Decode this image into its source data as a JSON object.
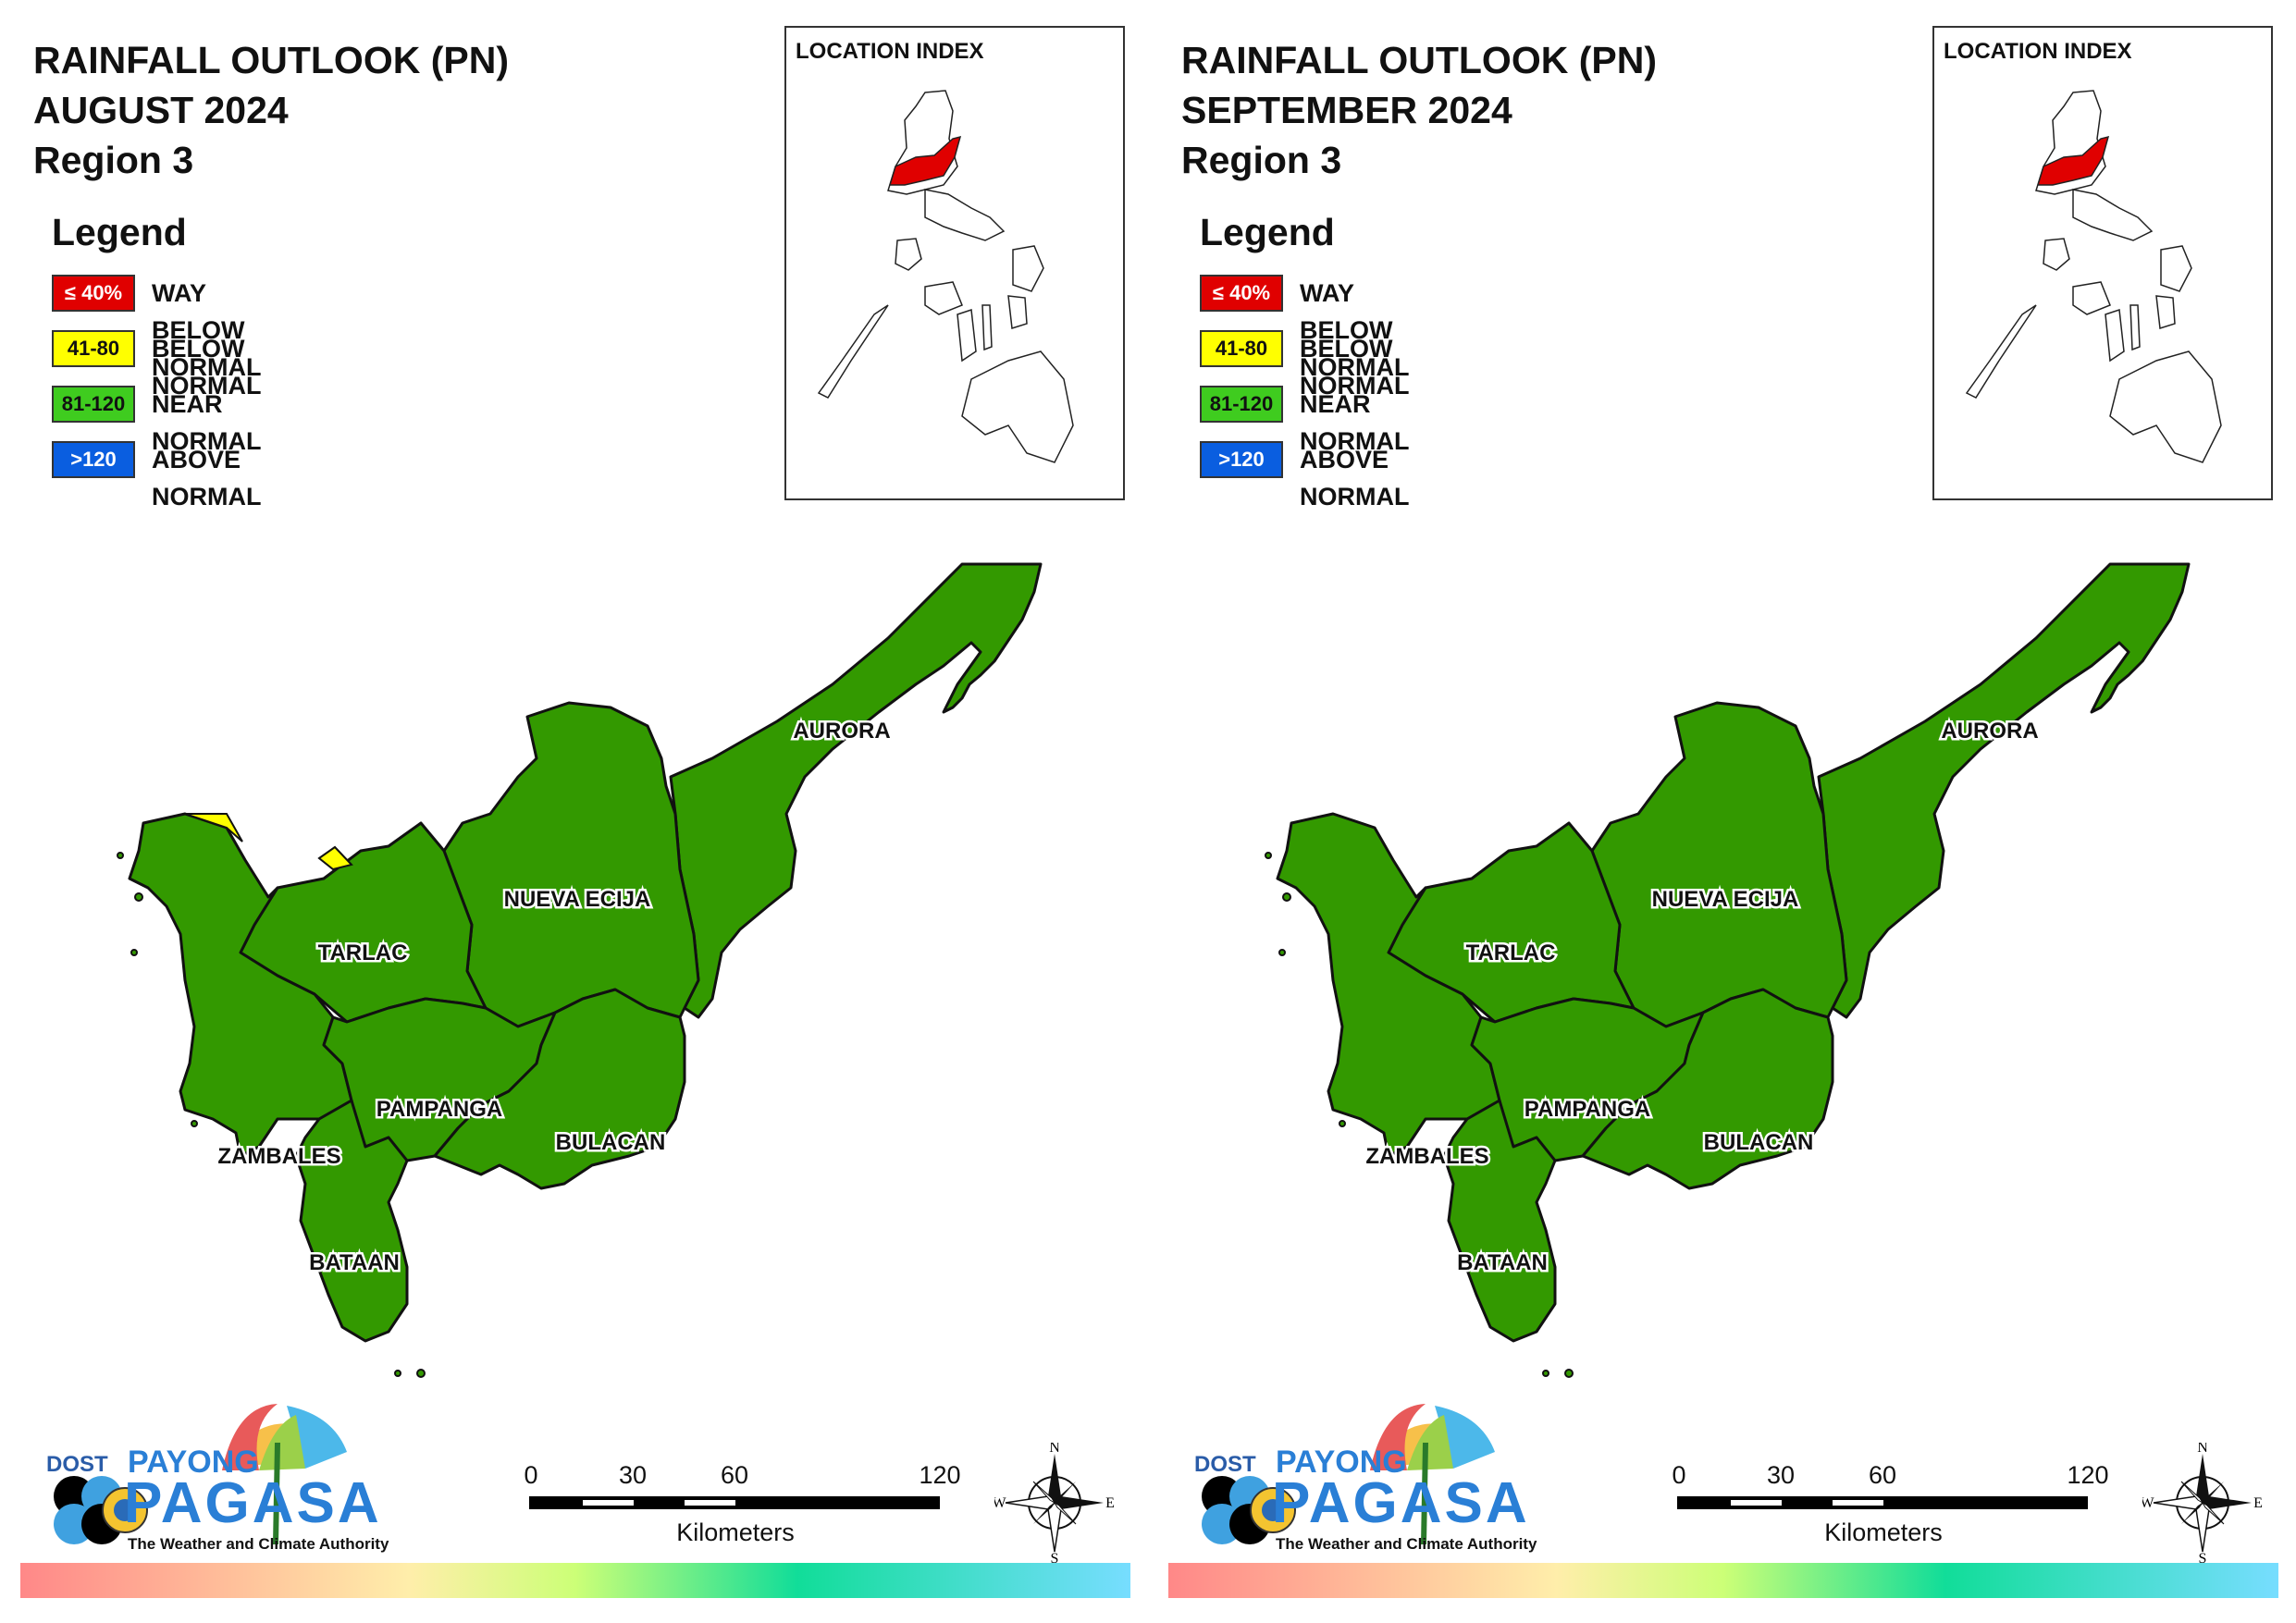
{
  "panels": [
    {
      "title_line1": "RAINFALL OUTLOOK (PN)",
      "title_line2": "AUGUST 2024",
      "title_line3": "Region 3",
      "legend": {
        "heading": "Legend",
        "items": [
          {
            "range": "≤ 40%",
            "label": "WAY BELOW NORMAL",
            "color": "#e00000",
            "text_color": "#ffffff"
          },
          {
            "range": "41-80",
            "label": "BELOW NORMAL",
            "color": "#ffff00",
            "text_color": "#111111"
          },
          {
            "range": "81-120",
            "label": "NEAR NORMAL",
            "color": "#3fcc1f",
            "text_color": "#111111"
          },
          {
            "range": ">120",
            "label": "ABOVE NORMAL",
            "color": "#0a5ee0",
            "text_color": "#ffffff"
          }
        ]
      },
      "location_index": "LOCATION INDEX",
      "provinces": [
        {
          "name": "AURORA",
          "category": "NEAR NORMAL"
        },
        {
          "name": "NUEVA ECIJA",
          "category": "NEAR NORMAL"
        },
        {
          "name": "TARLAC",
          "category": "NEAR NORMAL"
        },
        {
          "name": "PAMPANGA",
          "category": "NEAR NORMAL"
        },
        {
          "name": "BULACAN",
          "category": "NEAR NORMAL"
        },
        {
          "name": "ZAMBALES",
          "category": "NEAR NORMAL"
        },
        {
          "name": "BATAAN",
          "category": "NEAR NORMAL"
        }
      ],
      "small_patches_category": "BELOW NORMAL"
    },
    {
      "title_line1": "RAINFALL OUTLOOK (PN)",
      "title_line2": "SEPTEMBER 2024",
      "title_line3": "Region 3",
      "legend": {
        "heading": "Legend",
        "items": [
          {
            "range": "≤ 40%",
            "label": "WAY BELOW NORMAL",
            "color": "#e00000",
            "text_color": "#ffffff"
          },
          {
            "range": "41-80",
            "label": "BELOW NORMAL",
            "color": "#ffff00",
            "text_color": "#111111"
          },
          {
            "range": "81-120",
            "label": "NEAR NORMAL",
            "color": "#3fcc1f",
            "text_color": "#111111"
          },
          {
            "range": ">120",
            "label": "ABOVE NORMAL",
            "color": "#0a5ee0",
            "text_color": "#ffffff"
          }
        ]
      },
      "location_index": "LOCATION INDEX",
      "provinces": [
        {
          "name": "AURORA",
          "category": "NEAR NORMAL"
        },
        {
          "name": "NUEVA ECIJA",
          "category": "NEAR NORMAL"
        },
        {
          "name": "TARLAC",
          "category": "NEAR NORMAL"
        },
        {
          "name": "PAMPANGA",
          "category": "NEAR NORMAL"
        },
        {
          "name": "BULACAN",
          "category": "NEAR NORMAL"
        },
        {
          "name": "ZAMBALES",
          "category": "NEAR NORMAL"
        },
        {
          "name": "BATAAN",
          "category": "NEAR NORMAL"
        }
      ],
      "small_patches_category": ""
    }
  ],
  "map_fill_color": "#339900",
  "scale": {
    "ticks": [
      "0",
      "30",
      "60",
      "120"
    ],
    "unit": "Kilometers"
  },
  "compass": {
    "n": "N",
    "s": "S",
    "e": "E",
    "w": "W"
  },
  "logo": {
    "dost": "DOST",
    "payong": "PAYONG",
    "pagasa": "PAGASA",
    "tagline": "The Weather and Climate Authority"
  },
  "icons": [
    "compass-rose-icon",
    "umbrella-icon",
    "pagasa-seal-icon",
    "dost-seal-icon"
  ]
}
